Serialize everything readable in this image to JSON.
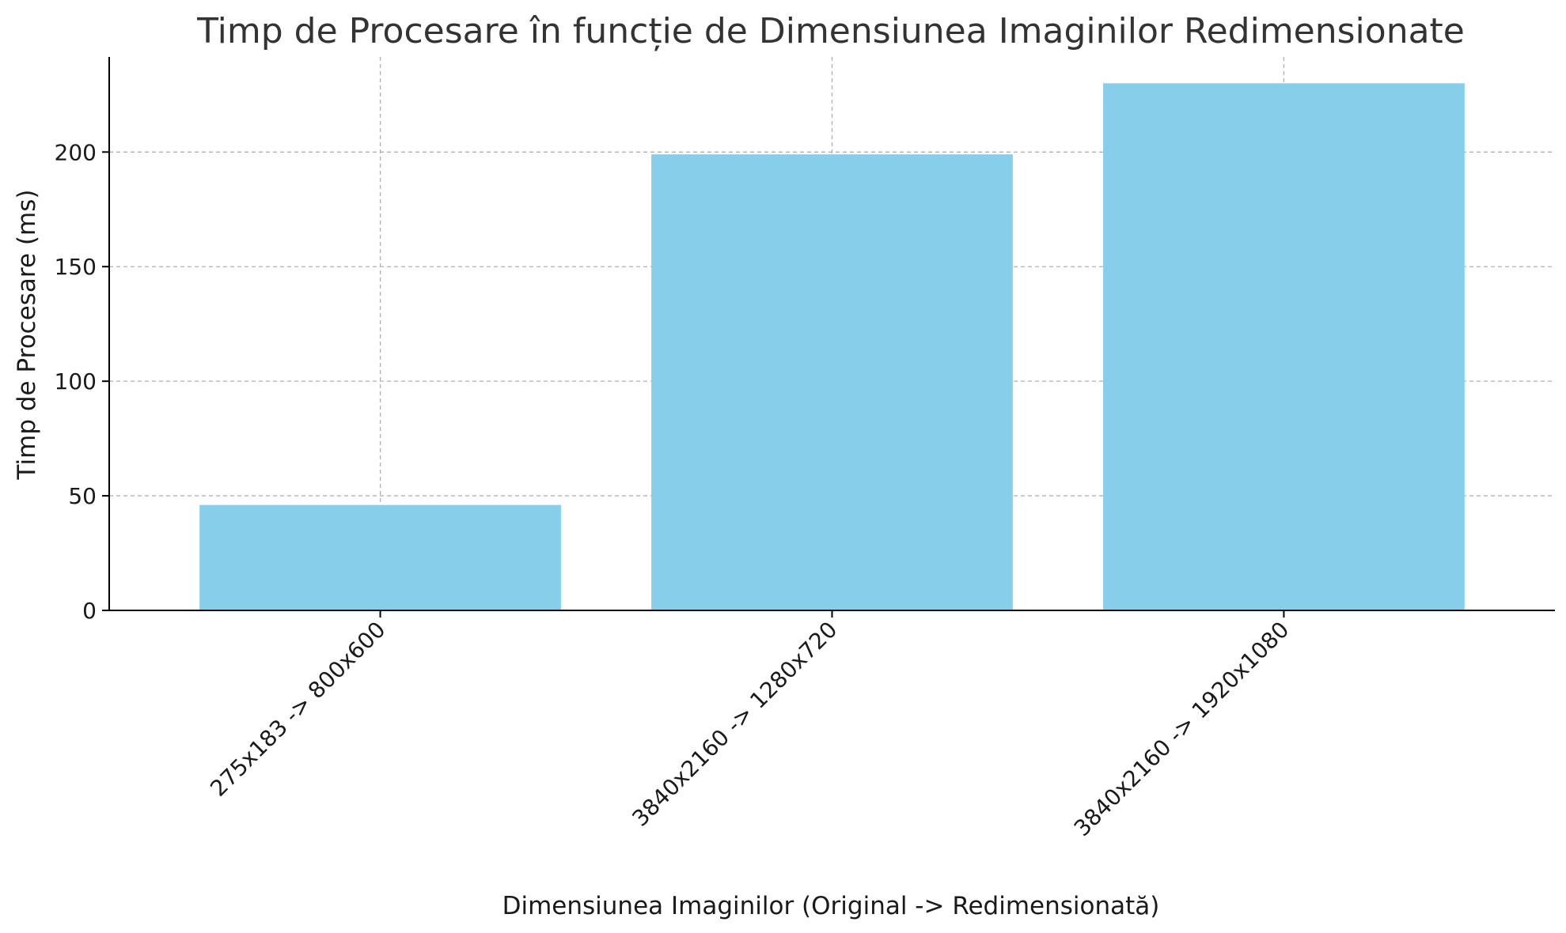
{
  "chart_data": {
    "type": "bar",
    "title": "Timp de Procesare în funcție de Dimensiunea Imaginilor Redimensionate",
    "xlabel": "Dimensiunea Imaginilor (Original -> Redimensionată)",
    "ylabel": "Timp de Procesare (ms)",
    "categories": [
      "275x183 -> 800x600",
      "3840x2160 -> 1280x720",
      "3840x2160 -> 1920x1080"
    ],
    "values": [
      46,
      199,
      230
    ],
    "ylim": [
      0,
      241.5
    ],
    "yticks": [
      0,
      50,
      100,
      150,
      200
    ],
    "bar_color": "#87ceeb",
    "grid": true
  }
}
